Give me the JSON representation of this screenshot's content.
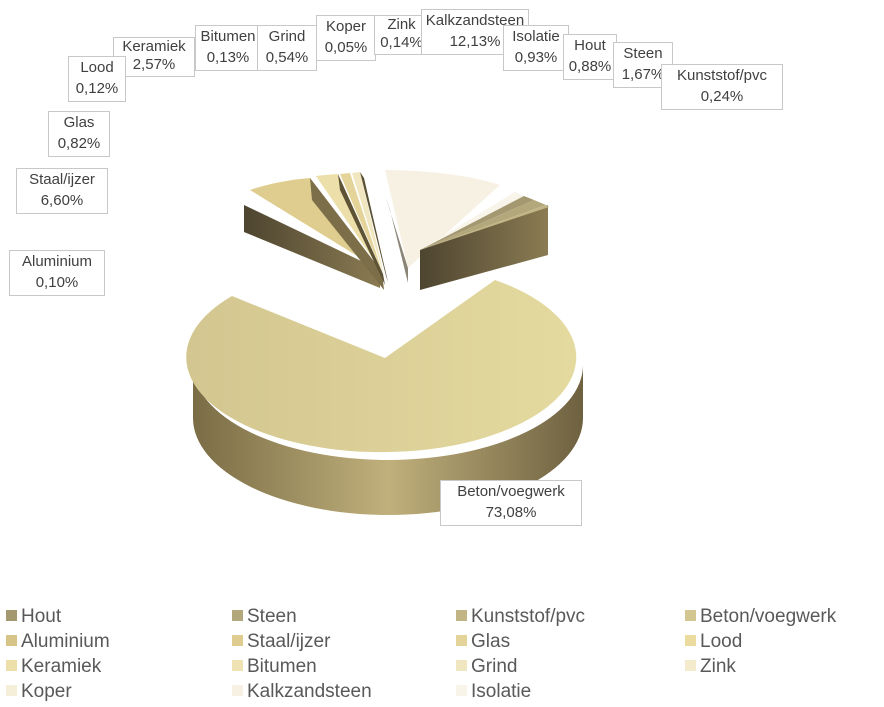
{
  "chart_data": {
    "type": "pie",
    "is_3d": true,
    "categories": [
      "Hout",
      "Steen",
      "Kunststof/pvc",
      "Beton/voegwerk",
      "Aluminium",
      "Staal/ijzer",
      "Glas",
      "Lood",
      "Keramiek",
      "Bitumen",
      "Grind",
      "Zink",
      "Koper",
      "Kalkzandsteen",
      "Isolatie"
    ],
    "values": [
      0.88,
      1.67,
      0.24,
      73.08,
      0.1,
      6.6,
      0.82,
      0.12,
      2.57,
      0.13,
      0.54,
      0.14,
      0.05,
      12.13,
      0.93
    ],
    "value_labels": [
      "0,88%",
      "1,67%",
      "0,24%",
      "73,08%",
      "0,10%",
      "6,60%",
      "0,82%",
      "0,12%",
      "2,57%",
      "0,13%",
      "0,54%",
      "0,14%",
      "0,05%",
      "12,13%",
      "0,93%"
    ],
    "colors": [
      "#a49870",
      "#b3a77c",
      "#c1b586",
      "#d3c690",
      "#d7c587",
      "#dfcd90",
      "#e5d49a",
      "#ebdb9f",
      "#ecdfa9",
      "#efe3b3",
      "#f0e6bf",
      "#f3ebcc",
      "#f5eed8",
      "#f6f1e2",
      "#f8f4ea"
    ],
    "title": "",
    "legend_position": "bottom",
    "legend_entries": [
      "Hout",
      "Steen",
      "Kunststof/pvc",
      "Beton/voegwerk",
      "Aluminium",
      "Staal/ijzer",
      "Glas",
      "Lood",
      "Keramiek",
      "Bitumen",
      "Grind",
      "Zink",
      "Koper",
      "Kalkzandsteen",
      "Isolatie"
    ]
  }
}
